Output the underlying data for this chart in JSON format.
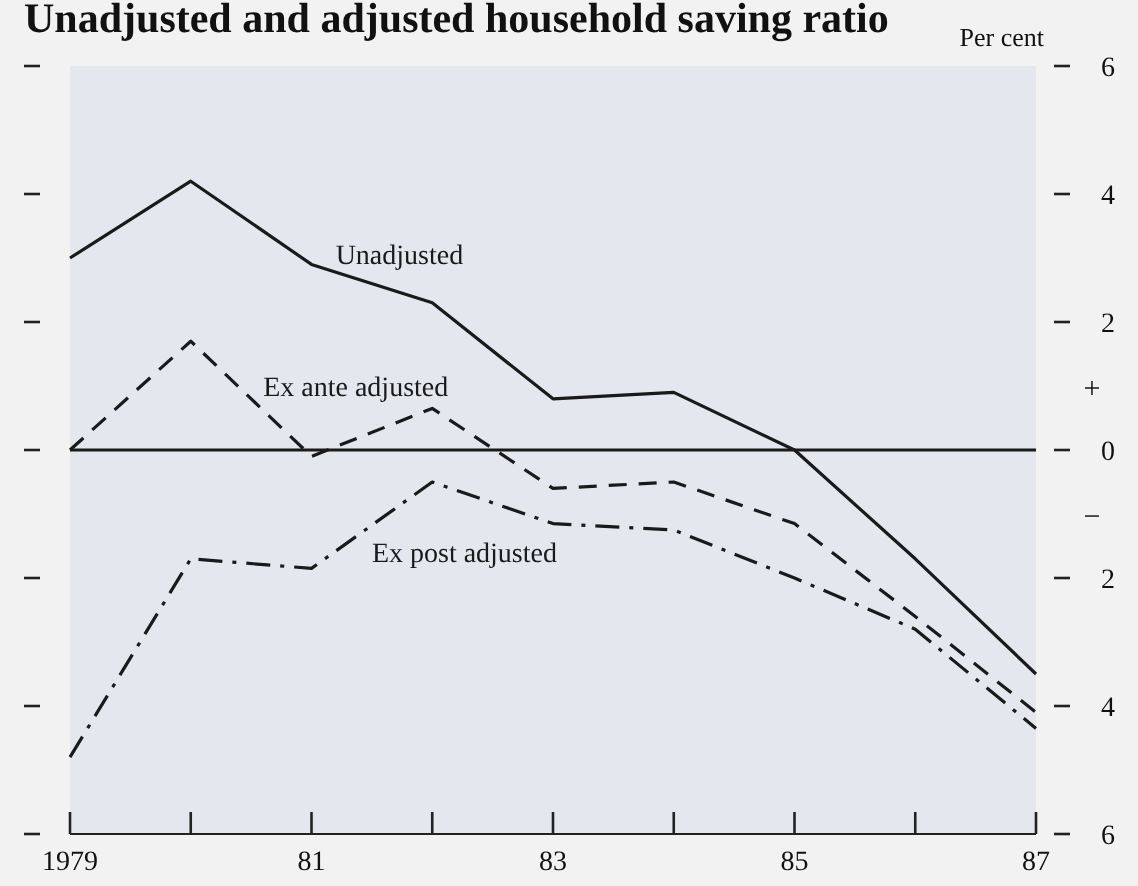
{
  "chart_data": {
    "type": "line",
    "title": "Unadjusted and adjusted household saving ratio",
    "ylabel": "Per cent",
    "x": [
      1979,
      1980,
      1981,
      1982,
      1983,
      1984,
      1985,
      1986,
      1987
    ],
    "xlim": [
      1979,
      1987
    ],
    "xticks": [
      1979,
      {
        "value": 1980,
        "label": null
      },
      {
        "value": 1981,
        "label": "81"
      },
      {
        "value": 1982,
        "label": null
      },
      {
        "value": 1983,
        "label": "83"
      },
      {
        "value": 1984,
        "label": null
      },
      {
        "value": 1985,
        "label": "85"
      },
      {
        "value": 1986,
        "label": null
      },
      {
        "value": 1987,
        "label": "87"
      }
    ],
    "ylim": [
      -6,
      6
    ],
    "yticks": [
      {
        "value": -6,
        "label": "6"
      },
      {
        "value": -4,
        "label": "4"
      },
      {
        "value": -2,
        "label": "2"
      },
      0,
      2,
      4,
      6
    ],
    "series": [
      {
        "name": "Unadjusted",
        "color": "#1a1a1a",
        "line_style": "solid",
        "values": [
          3.0,
          4.2,
          2.9,
          2.3,
          0.8,
          0.9,
          0.0,
          -1.7,
          -3.5
        ]
      },
      {
        "name": "Ex ante adjusted",
        "color": "#1a1a1a",
        "line_style": "dashed",
        "values": [
          0.0,
          1.7,
          -0.1,
          0.65,
          -0.6,
          -0.5,
          -1.15,
          -2.6,
          -4.1
        ]
      },
      {
        "name": "Ex post adjusted",
        "color": "#1a1a1a",
        "line_style": "dashdot",
        "values": [
          -4.8,
          -1.7,
          -1.85,
          -0.5,
          -1.15,
          -1.25,
          -2.0,
          -2.8,
          -4.35
        ]
      }
    ],
    "ref_lines": [
      {
        "axis": "y",
        "value": 0,
        "color": "#1a1a1a"
      }
    ],
    "annotations": [
      "+",
      "−"
    ],
    "grid": false,
    "legend": false,
    "marker": "none"
  }
}
